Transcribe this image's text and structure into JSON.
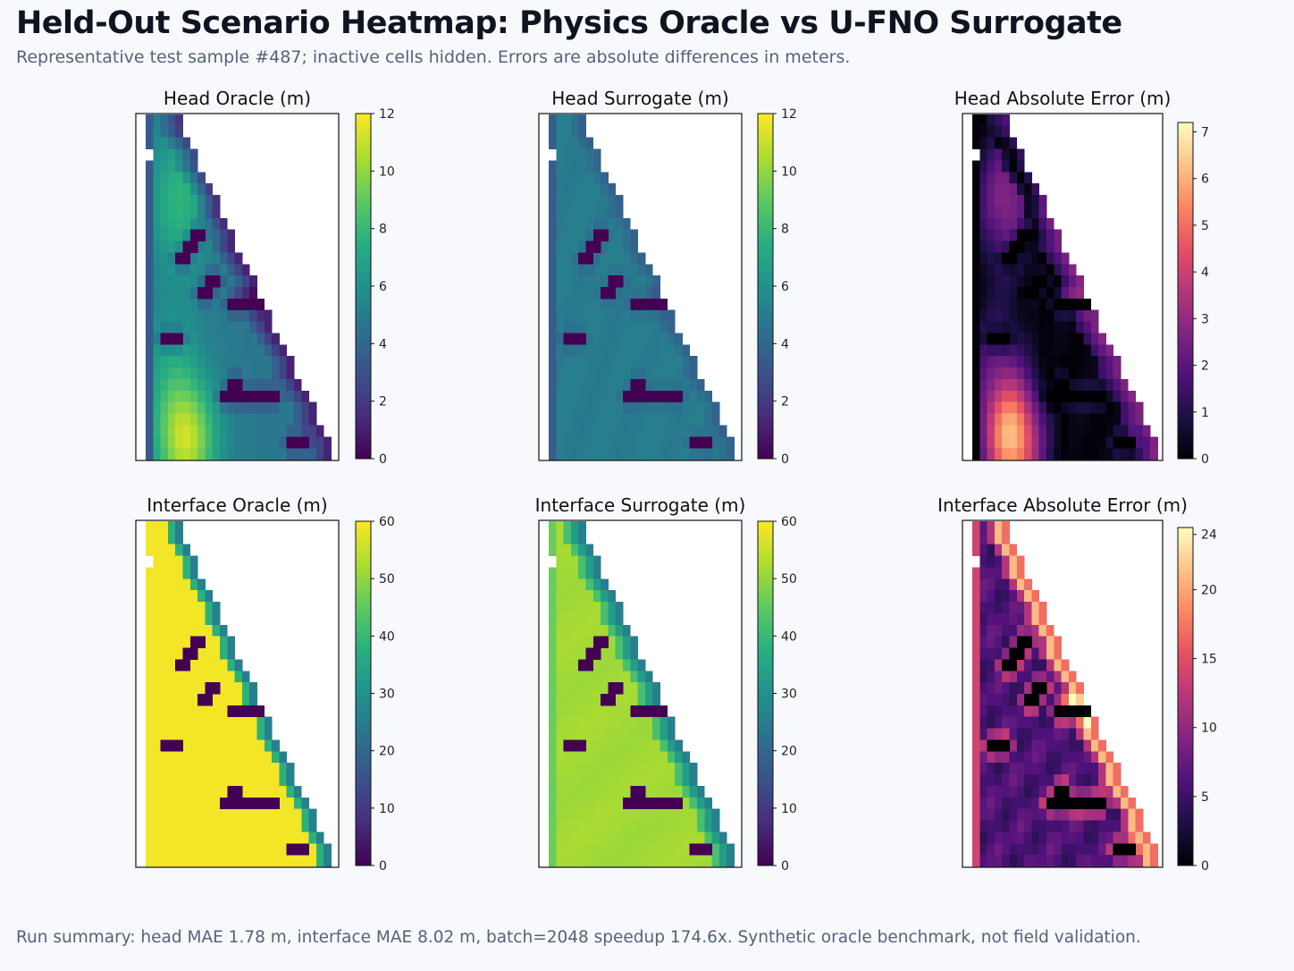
{
  "title": "Held-Out Scenario Heatmap: Physics Oracle vs U-FNO Surrogate",
  "subtitle": "Representative test sample #487; inactive cells hidden. Errors are absolute differences in meters.",
  "footer": "Run summary: head MAE 1.78 m, interface MAE 8.02 m, batch=2048 speedup 174.6x. Synthetic oracle benchmark, not field validation.",
  "chart_data": [
    {
      "type": "heatmap",
      "title": "Head Oracle (m)",
      "colormap": "viridis",
      "colorbar_range": [
        0,
        12
      ],
      "colorbar_ticks": [
        "0",
        "2",
        "4",
        "6",
        "8",
        "10",
        "12"
      ],
      "field": "head_oracle"
    },
    {
      "type": "heatmap",
      "title": "Head Surrogate (m)",
      "colormap": "viridis",
      "colorbar_range": [
        0,
        12
      ],
      "colorbar_ticks": [
        "0",
        "2",
        "4",
        "6",
        "8",
        "10",
        "12"
      ],
      "field": "head_surrogate"
    },
    {
      "type": "heatmap",
      "title": "Head Absolute Error (m)",
      "colormap": "magma",
      "colorbar_range": [
        0,
        7.2
      ],
      "colorbar_ticks": [
        "0",
        "1",
        "2",
        "3",
        "4",
        "5",
        "6",
        "7"
      ],
      "field": "head_error"
    },
    {
      "type": "heatmap",
      "title": "Interface Oracle (m)",
      "colormap": "viridis",
      "colorbar_range": [
        0,
        60
      ],
      "colorbar_ticks": [
        "0",
        "10",
        "20",
        "30",
        "40",
        "50",
        "60"
      ],
      "field": "interface_oracle"
    },
    {
      "type": "heatmap",
      "title": "Interface Surrogate (m)",
      "colormap": "viridis",
      "colorbar_range": [
        0,
        60
      ],
      "colorbar_ticks": [
        "0",
        "10",
        "20",
        "30",
        "40",
        "50",
        "60"
      ],
      "field": "interface_surrogate"
    },
    {
      "type": "heatmap",
      "title": "Interface Absolute Error (m)",
      "colormap": "magma",
      "colorbar_range": [
        0,
        24.5
      ],
      "colorbar_ticks": [
        "0",
        "5",
        "10",
        "15",
        "20",
        "24"
      ],
      "field": "interface_error"
    }
  ]
}
